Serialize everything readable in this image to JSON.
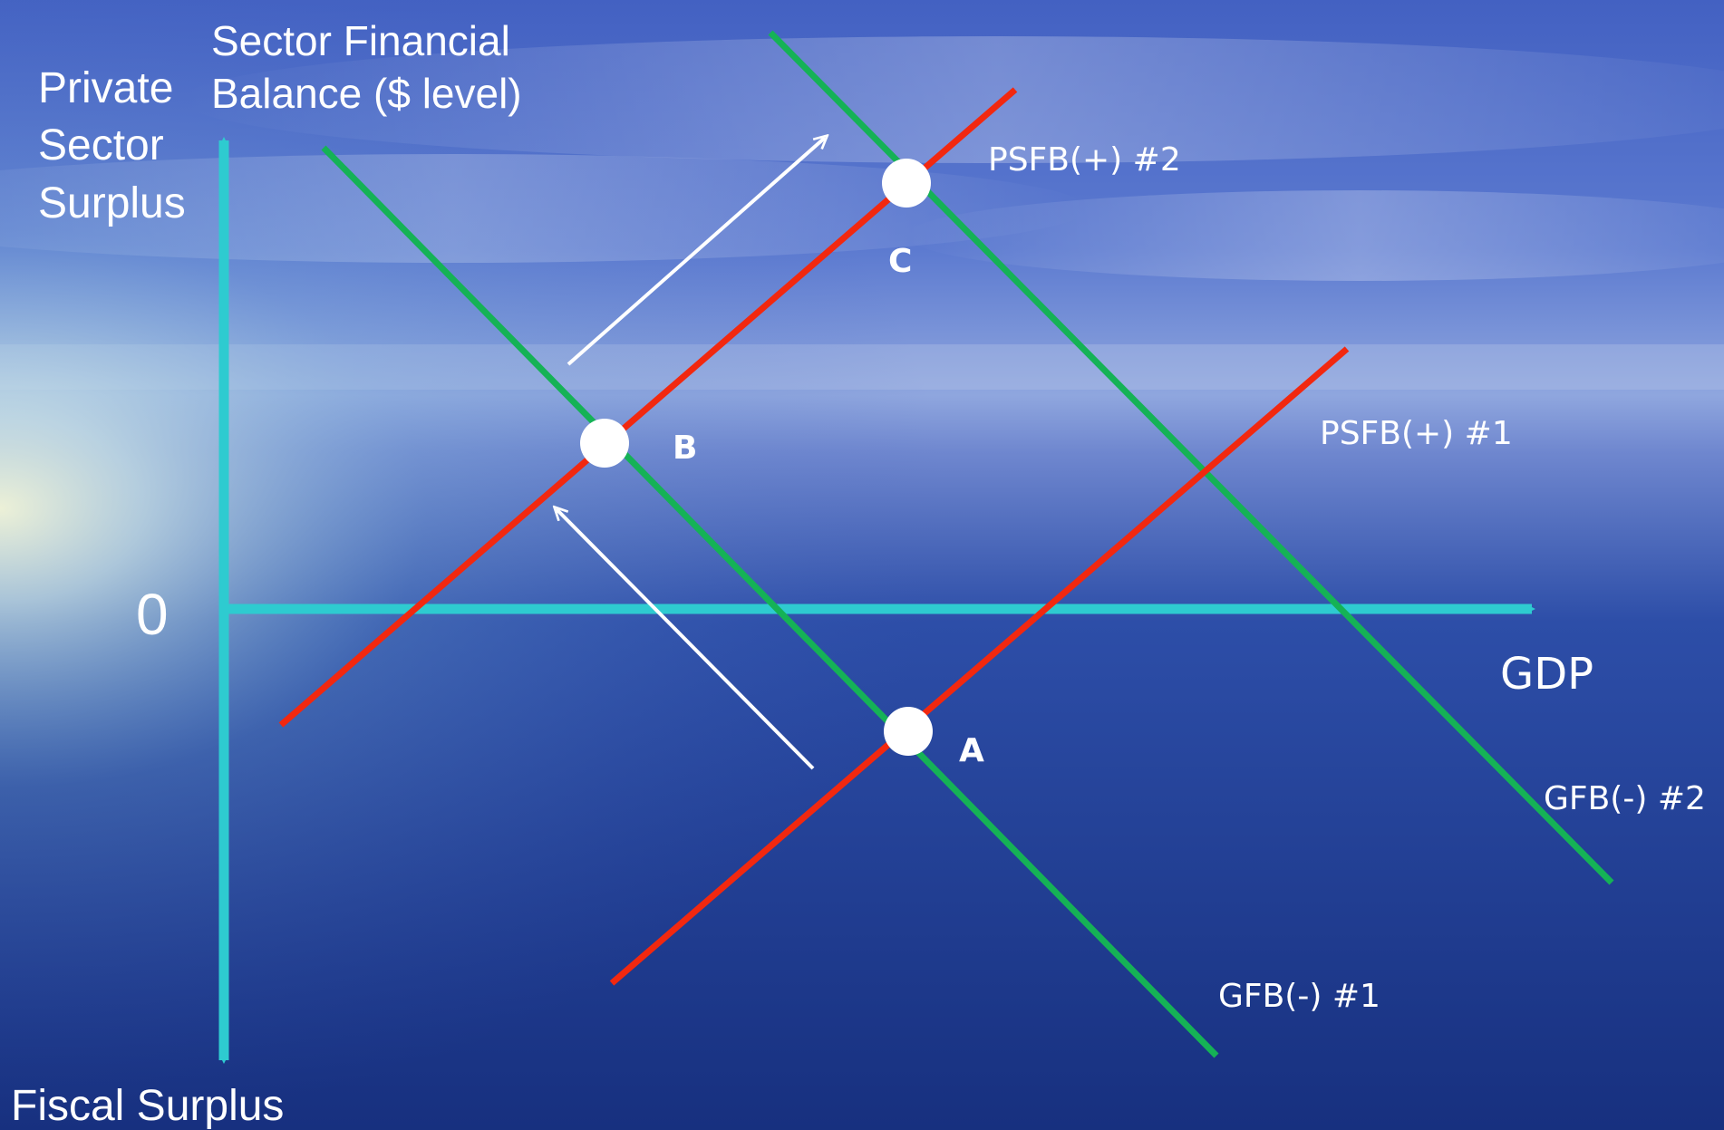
{
  "title": {
    "line1": "Sector Financial",
    "line2": "Balance ($ level)"
  },
  "y_axis": {
    "top_label": [
      "Private",
      "Sector",
      "Surplus"
    ],
    "bottom_label": "Fiscal Surplus",
    "origin_label": "0"
  },
  "x_axis": {
    "label": "GDP"
  },
  "lines": {
    "psfb1": "PSFB(+) #1",
    "psfb2": "PSFB(+) #2",
    "gfb1": "GFB(-) #1",
    "gfb2": "GFB(-) #2"
  },
  "points": {
    "a": "A",
    "b": "B",
    "c": "C"
  },
  "colors": {
    "axis": "#2ecbd0",
    "psfb_line": "#f2280f",
    "gfb_line": "#15b256",
    "point": "#ffffff",
    "arrow": "#ffffff",
    "text": "#ffffff",
    "sky_top": "#4a6bc9",
    "sea": "#1c3a8e"
  }
}
